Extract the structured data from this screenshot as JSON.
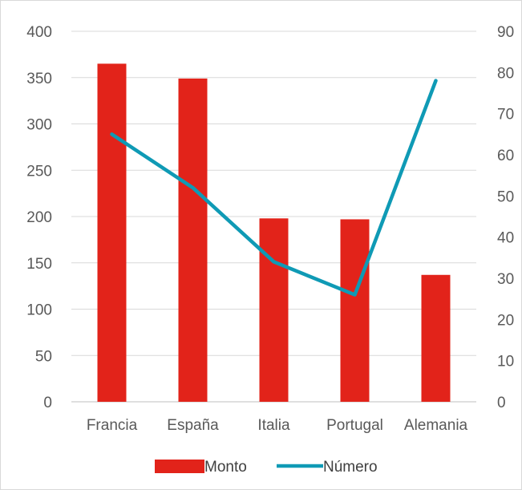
{
  "chart_data": {
    "type": "bar+line",
    "categories": [
      "Francia",
      "España",
      "Italia",
      "Portugal",
      "Alemania"
    ],
    "series": [
      {
        "name": "Monto",
        "type": "bar",
        "axis": "left",
        "color": "#e2231a",
        "values": [
          365,
          349,
          198,
          197,
          137
        ]
      },
      {
        "name": "Número",
        "type": "line",
        "axis": "right",
        "color": "#0f9ab5",
        "values": [
          65,
          52,
          34,
          26,
          78
        ]
      }
    ],
    "y_left": {
      "min": 0,
      "max": 400,
      "step": 50,
      "ticks": [
        "0",
        "50",
        "100",
        "150",
        "200",
        "250",
        "300",
        "350",
        "400"
      ]
    },
    "y_right": {
      "min": 0,
      "max": 90,
      "step": 10,
      "ticks": [
        "0",
        "10",
        "20",
        "30",
        "40",
        "50",
        "60",
        "70",
        "80",
        "90"
      ]
    },
    "grid": true,
    "legend_position": "bottom",
    "title": "",
    "xlabel": "",
    "ylabel": ""
  }
}
